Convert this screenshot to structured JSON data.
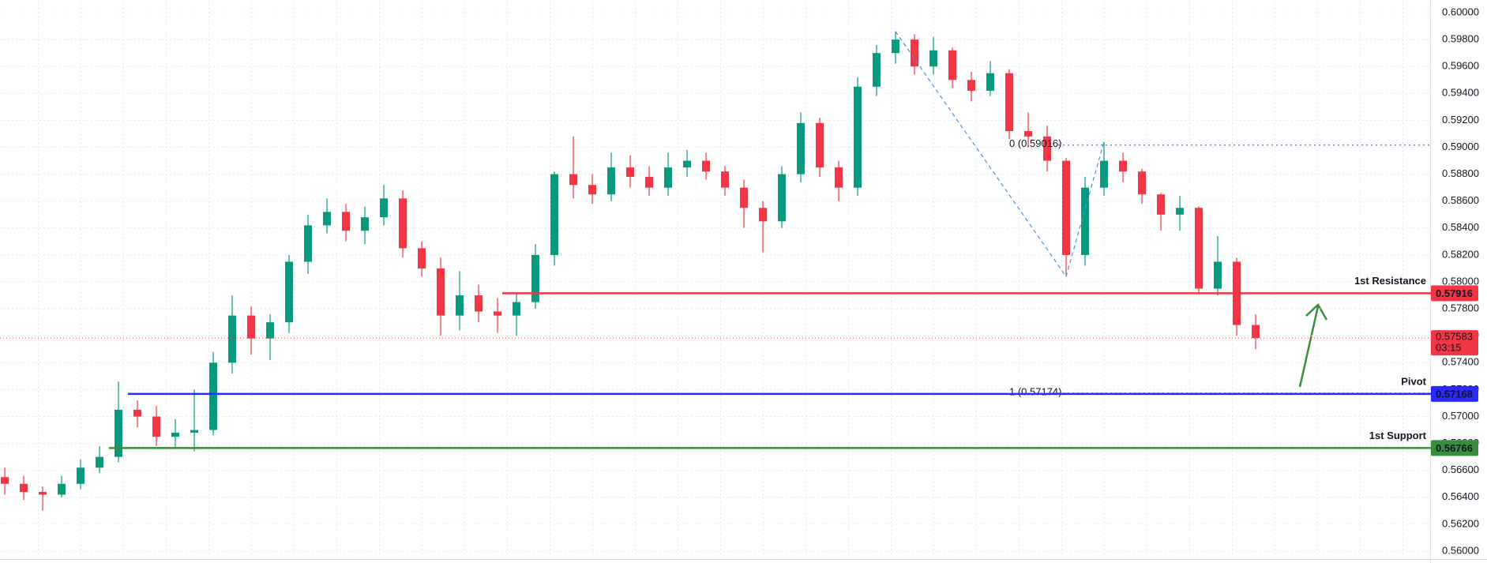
{
  "chart_data": {
    "type": "candlestick",
    "open": [
      0.5655,
      0.565,
      0.5644,
      0.5642,
      0.565,
      0.5662,
      0.567,
      0.5705,
      0.57,
      0.5685,
      0.5688,
      0.569,
      0.574,
      0.5775,
      0.5758,
      0.577,
      0.5815,
      0.5842,
      0.5852,
      0.5838,
      0.5848,
      0.5862,
      0.5825,
      0.581,
      0.5775,
      0.579,
      0.5778,
      0.5775,
      0.5785,
      0.582,
      0.588,
      0.5872,
      0.5865,
      0.5885,
      0.5878,
      0.587,
      0.5885,
      0.589,
      0.5882,
      0.587,
      0.5855,
      0.5845,
      0.588,
      0.5918,
      0.5885,
      0.587,
      0.5945,
      0.597,
      0.598,
      0.596,
      0.5972,
      0.595,
      0.5942,
      0.5955,
      0.5912,
      0.5908,
      0.589,
      0.582,
      0.587,
      0.589,
      0.5882,
      0.5865,
      0.585,
      0.5855,
      0.5795,
      0.5815,
      0.5768
    ],
    "high": [
      0.5662,
      0.5656,
      0.5648,
      0.5656,
      0.5668,
      0.5678,
      0.5726,
      0.5712,
      0.5708,
      0.5698,
      0.572,
      0.5748,
      0.579,
      0.5782,
      0.5776,
      0.582,
      0.585,
      0.5862,
      0.5858,
      0.5856,
      0.5872,
      0.5868,
      0.583,
      0.5818,
      0.5808,
      0.5798,
      0.5788,
      0.5792,
      0.5828,
      0.5882,
      0.5908,
      0.588,
      0.5896,
      0.5894,
      0.5886,
      0.5896,
      0.5898,
      0.5896,
      0.5886,
      0.5876,
      0.586,
      0.5886,
      0.5926,
      0.5922,
      0.589,
      0.5952,
      0.5976,
      0.5986,
      0.5984,
      0.5982,
      0.5974,
      0.5956,
      0.5964,
      0.5958,
      0.5926,
      0.5916,
      0.5892,
      0.5878,
      0.5904,
      0.5896,
      0.5884,
      0.5866,
      0.5864,
      0.5856,
      0.5834,
      0.5818,
      0.5776
    ],
    "low": [
      0.5642,
      0.5638,
      0.563,
      0.564,
      0.5646,
      0.5658,
      0.5666,
      0.5692,
      0.5678,
      0.5676,
      0.5674,
      0.5686,
      0.5732,
      0.5746,
      0.5742,
      0.5762,
      0.5806,
      0.5836,
      0.583,
      0.5828,
      0.5842,
      0.5818,
      0.5804,
      0.576,
      0.5764,
      0.577,
      0.5762,
      0.576,
      0.578,
      0.5812,
      0.5862,
      0.5858,
      0.586,
      0.587,
      0.5864,
      0.5864,
      0.5878,
      0.5876,
      0.5864,
      0.584,
      0.5822,
      0.584,
      0.5874,
      0.5878,
      0.586,
      0.5864,
      0.5938,
      0.5962,
      0.5954,
      0.5954,
      0.5944,
      0.5934,
      0.5938,
      0.5906,
      0.59,
      0.5882,
      0.5804,
      0.5812,
      0.5864,
      0.5874,
      0.5858,
      0.5838,
      0.5838,
      0.5792,
      0.579,
      0.576,
      0.575
    ],
    "close": [
      0.565,
      0.5644,
      0.5642,
      0.565,
      0.5662,
      0.567,
      0.5705,
      0.57,
      0.5685,
      0.5688,
      0.569,
      0.574,
      0.5775,
      0.5758,
      0.577,
      0.5815,
      0.5842,
      0.5852,
      0.5838,
      0.5848,
      0.5862,
      0.5825,
      0.581,
      0.5775,
      0.579,
      0.5778,
      0.5775,
      0.5785,
      0.582,
      0.588,
      0.5872,
      0.5865,
      0.5885,
      0.5878,
      0.587,
      0.5885,
      0.589,
      0.5882,
      0.587,
      0.5855,
      0.5845,
      0.588,
      0.5918,
      0.5885,
      0.587,
      0.5945,
      0.597,
      0.598,
      0.596,
      0.5972,
      0.595,
      0.5942,
      0.5955,
      0.5912,
      0.5908,
      0.589,
      0.582,
      0.587,
      0.589,
      0.5882,
      0.5865,
      0.585,
      0.5855,
      0.5795,
      0.5815,
      0.5768,
      0.57583
    ],
    "up_color": "#089981",
    "down_color": "#f23645",
    "ylim": [
      0.56,
      0.6
    ],
    "yticks": [
      {
        "value": 0.56,
        "label": "0.56000"
      },
      {
        "value": 0.562,
        "label": "0.56200"
      },
      {
        "value": 0.564,
        "label": "0.56400"
      },
      {
        "value": 0.566,
        "label": "0.56600"
      },
      {
        "value": 0.568,
        "label": "0.56800"
      },
      {
        "value": 0.57,
        "label": "0.57000"
      },
      {
        "value": 0.572,
        "label": "0.57200"
      },
      {
        "value": 0.574,
        "label": "0.57400"
      },
      {
        "value": 0.576,
        "label": "0.57600"
      },
      {
        "value": 0.578,
        "label": "0.57800"
      },
      {
        "value": 0.58,
        "label": "0.58000"
      },
      {
        "value": 0.582,
        "label": "0.58200"
      },
      {
        "value": 0.584,
        "label": "0.58400"
      },
      {
        "value": 0.586,
        "label": "0.58600"
      },
      {
        "value": 0.588,
        "label": "0.58800"
      },
      {
        "value": 0.59,
        "label": "0.59000"
      },
      {
        "value": 0.592,
        "label": "0.59200"
      },
      {
        "value": 0.594,
        "label": "0.59400"
      },
      {
        "value": 0.596,
        "label": "0.59600"
      },
      {
        "value": 0.598,
        "label": "0.59800"
      },
      {
        "value": 0.6,
        "label": "0.60000"
      }
    ],
    "grid": true,
    "levels": [
      {
        "name": "1st Resistance",
        "value": 0.57916,
        "color": "#f23645"
      },
      {
        "name": "Pivot",
        "value": 0.57168,
        "color": "#2a2aff"
      },
      {
        "name": "1st Support",
        "value": 0.56766,
        "color": "#388e3c"
      }
    ],
    "last_price": {
      "value": 0.57583,
      "countdown": "03:15",
      "color": "#f23645"
    },
    "fib_levels": [
      {
        "value": 0.59016,
        "label": "0 (0.59016)"
      },
      {
        "value": 0.57174,
        "label": "1 (0.57174)"
      }
    ],
    "fib_color": "#4a90e2"
  }
}
